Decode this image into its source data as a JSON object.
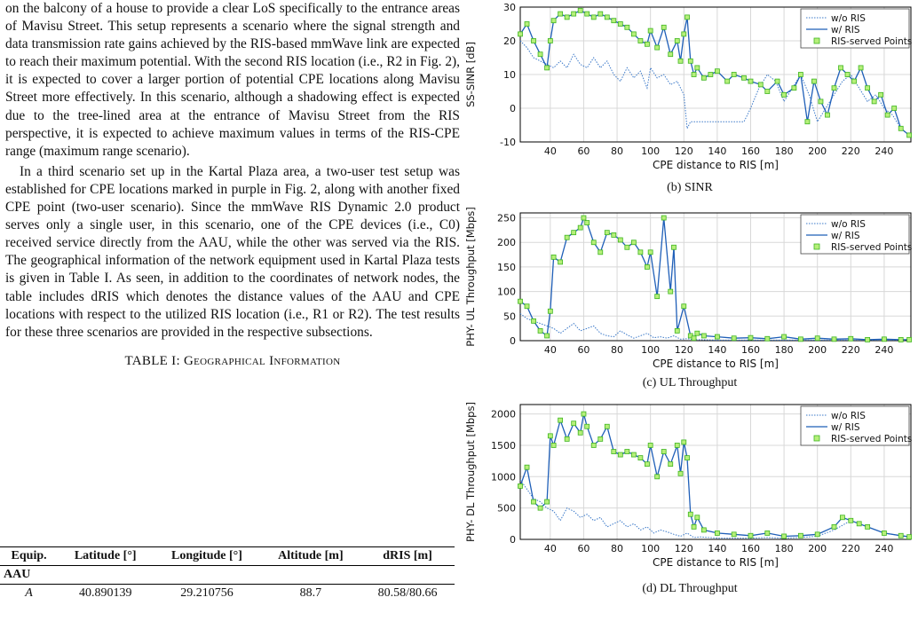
{
  "left": {
    "p1": "on the balcony of a house to provide a clear LoS specifically to the entrance areas of Mavisu Street. This setup represents a scenario where the signal strength and data transmission rate gains achieved by the RIS-based mmWave link are expected to reach their maximum potential. With the second RIS location (i.e., R2 in Fig. 2), it is expected to cover a larger portion of potential CPE locations along Mavisu Street more effectively. In this scenario, although a shadowing effect is expected due to the tree-lined area at the entrance of Mavisu Street from the RIS perspective, it is expected to achieve maximum values in terms of the RIS-CPE range (maximum range scenario).",
    "p2": "In a third scenario set up in the Kartal Plaza area, a two-user test setup was established for CPE locations marked in purple in Fig. 2, along with another fixed CPE point (two-user scenario). Since the mmWave RIS Dynamic 2.0 product serves only a single user, in this scenario, one of the CPE devices (i.e., C0) received service directly from the AAU, while the other was served via the RIS. The geographical information of the network equipment used in Kartal Plaza tests is given in Table I. As seen, in addition to the coordinates of network nodes, the table includes dRIS which denotes the distance values of the AAU and CPE locations with respect to the utilized RIS location (i.e., R1 or R2). The test results for these three scenarios are provided in the respective subsections.",
    "table_title": "TABLE I: Geographical Information",
    "table": {
      "headers": [
        "Equip.",
        "Latitude [°]",
        "Longitude [°]",
        "Altitude [m]",
        "dRIS [m]"
      ],
      "group": "AAU",
      "row": [
        "A",
        "40.890139",
        "29.210756",
        "88.7",
        "80.58/80.66"
      ]
    }
  },
  "figures": [
    {
      "caption": "(b) SINR",
      "legend": [
        "w/o RIS",
        "w/ RIS",
        "RIS-served Points"
      ],
      "chart_data": {
        "type": "line",
        "ylabel": "SS-SINR [dB]",
        "xlabel": "CPE distance to RIS [m]",
        "xlim": [
          22,
          256
        ],
        "ylim": [
          -10,
          30
        ],
        "xticks": [
          40,
          60,
          80,
          100,
          120,
          140,
          160,
          180,
          200,
          220,
          240
        ],
        "yticks": [
          -10,
          0,
          10,
          20,
          30
        ],
        "series": [
          {
            "name": "w/o RIS",
            "x": [
              22,
              26,
              30,
              34,
              38,
              42,
              46,
              50,
              54,
              58,
              62,
              66,
              70,
              74,
              78,
              82,
              86,
              90,
              94,
              98,
              100,
              104,
              108,
              112,
              116,
              120,
              122,
              124,
              130,
              140,
              150,
              156,
              160,
              165,
              170,
              175,
              180,
              185,
              190,
              195,
              200,
              205,
              210,
              215,
              220,
              225,
              230,
              235,
              240,
              245,
              250,
              255
            ],
            "values": [
              20,
              18,
              15,
              14,
              13,
              12,
              14,
              12,
              16,
              13,
              12,
              15,
              12,
              14,
              10,
              8,
              12,
              9,
              11,
              6,
              12,
              9,
              10,
              7,
              8,
              4,
              -6,
              -4,
              -4,
              -4,
              -4,
              -4,
              0,
              6,
              10,
              8,
              2,
              6,
              10,
              4,
              -4,
              0,
              4,
              8,
              10,
              6,
              2,
              4,
              0,
              -2,
              -6,
              -8
            ]
          },
          {
            "name": "w/ RIS",
            "x": [
              22,
              26,
              30,
              34,
              38,
              40,
              42,
              46,
              50,
              54,
              58,
              62,
              66,
              70,
              74,
              78,
              82,
              86,
              90,
              94,
              98,
              100,
              104,
              108,
              112,
              116,
              118,
              120,
              122,
              124,
              126,
              128,
              132,
              136,
              140,
              146,
              150,
              156,
              160,
              166,
              170,
              176,
              180,
              186,
              190,
              194,
              198,
              202,
              206,
              210,
              214,
              218,
              222,
              226,
              230,
              234,
              238,
              242,
              246,
              250,
              255
            ],
            "values": [
              22,
              25,
              20,
              16,
              12,
              20,
              26,
              28,
              27,
              28,
              29,
              28,
              27,
              28,
              27,
              26,
              25,
              24,
              22,
              20,
              19,
              23,
              18,
              24,
              16,
              20,
              14,
              22,
              27,
              14,
              10,
              12,
              9,
              10,
              11,
              8,
              10,
              9,
              8,
              7,
              5,
              8,
              4,
              6,
              10,
              -4,
              8,
              2,
              -2,
              6,
              12,
              10,
              8,
              12,
              6,
              2,
              4,
              -2,
              0,
              -6,
              -8
            ]
          }
        ]
      }
    },
    {
      "caption": "(c) UL Throughput",
      "legend": [
        "w/o RIS",
        "w/ RIS",
        "RIS-served Points"
      ],
      "chart_data": {
        "type": "line",
        "ylabel": "PHY- UL Throughput [Mbps]",
        "xlabel": "CPE distance to RIS [m]",
        "xlim": [
          22,
          256
        ],
        "ylim": [
          0,
          260
        ],
        "xticks": [
          40,
          60,
          80,
          100,
          120,
          140,
          160,
          180,
          200,
          220,
          240
        ],
        "yticks": [
          0,
          50,
          100,
          150,
          200,
          250
        ],
        "series": [
          {
            "name": "w/o RIS",
            "x": [
              22,
              26,
              30,
              34,
              38,
              42,
              46,
              50,
              54,
              58,
              62,
              66,
              70,
              74,
              78,
              82,
              86,
              90,
              94,
              98,
              102,
              106,
              110,
              114,
              118,
              122,
              126,
              130,
              140,
              150,
              160,
              170,
              180,
              190,
              200,
              210,
              220,
              230,
              240,
              250,
              255
            ],
            "values": [
              55,
              45,
              40,
              35,
              30,
              25,
              15,
              25,
              35,
              20,
              25,
              30,
              15,
              10,
              8,
              20,
              12,
              5,
              10,
              15,
              6,
              8,
              5,
              10,
              3,
              4,
              2,
              2,
              1,
              1,
              1,
              1,
              1,
              1,
              1,
              1,
              1,
              1,
              1,
              1,
              1
            ]
          },
          {
            "name": "w/ RIS",
            "x": [
              22,
              26,
              30,
              34,
              38,
              40,
              42,
              46,
              50,
              54,
              58,
              60,
              62,
              66,
              70,
              74,
              78,
              82,
              86,
              90,
              94,
              98,
              100,
              104,
              108,
              112,
              114,
              116,
              120,
              124,
              126,
              128,
              132,
              140,
              150,
              160,
              170,
              180,
              190,
              200,
              210,
              220,
              230,
              240,
              250,
              255
            ],
            "values": [
              80,
              70,
              40,
              20,
              10,
              60,
              170,
              160,
              210,
              220,
              230,
              250,
              240,
              200,
              180,
              220,
              215,
              205,
              190,
              200,
              180,
              150,
              180,
              90,
              250,
              100,
              190,
              20,
              70,
              10,
              5,
              15,
              10,
              8,
              5,
              6,
              4,
              8,
              3,
              5,
              3,
              4,
              2,
              3,
              2,
              2
            ]
          }
        ]
      }
    },
    {
      "caption": "(d) DL Throughput",
      "legend": [
        "w/o RIS",
        "w/ RIS",
        "RIS-served Points"
      ],
      "chart_data": {
        "type": "line",
        "ylabel": "PHY- DL Throughput [Mbps]",
        "xlabel": "CPE distance to RIS [m]",
        "xlim": [
          22,
          256
        ],
        "ylim": [
          0,
          2150
        ],
        "xticks": [
          40,
          60,
          80,
          100,
          120,
          140,
          160,
          180,
          200,
          220,
          240
        ],
        "yticks": [
          0,
          500,
          1000,
          1500,
          2000
        ],
        "series": [
          {
            "name": "w/o RIS",
            "x": [
              22,
              26,
              30,
              34,
              38,
              42,
              46,
              50,
              54,
              58,
              62,
              66,
              70,
              74,
              78,
              82,
              86,
              90,
              94,
              98,
              102,
              106,
              110,
              114,
              118,
              122,
              126,
              130,
              140,
              150,
              160,
              170,
              180,
              190,
              200,
              210,
              220,
              230,
              240,
              250,
              255
            ],
            "values": [
              950,
              800,
              650,
              600,
              500,
              450,
              300,
              500,
              450,
              350,
              400,
              300,
              350,
              200,
              250,
              300,
              200,
              250,
              150,
              200,
              100,
              150,
              120,
              80,
              50,
              100,
              30,
              40,
              20,
              20,
              20,
              30,
              20,
              30,
              50,
              150,
              300,
              200,
              100,
              60,
              50
            ]
          },
          {
            "name": "w/ RIS",
            "x": [
              22,
              26,
              30,
              34,
              38,
              40,
              42,
              46,
              50,
              54,
              58,
              60,
              62,
              66,
              70,
              74,
              78,
              82,
              86,
              90,
              94,
              98,
              100,
              104,
              108,
              112,
              116,
              118,
              120,
              122,
              124,
              126,
              128,
              132,
              140,
              150,
              160,
              170,
              180,
              190,
              200,
              210,
              215,
              220,
              225,
              230,
              240,
              250,
              255
            ],
            "values": [
              850,
              1150,
              600,
              500,
              600,
              1650,
              1500,
              1900,
              1600,
              1850,
              1700,
              2000,
              1800,
              1500,
              1600,
              1800,
              1400,
              1350,
              1400,
              1350,
              1300,
              1200,
              1500,
              1000,
              1400,
              1200,
              1500,
              1050,
              1550,
              1300,
              400,
              200,
              350,
              150,
              100,
              80,
              60,
              100,
              50,
              60,
              80,
              200,
              350,
              300,
              250,
              200,
              100,
              60,
              40
            ]
          }
        ]
      }
    }
  ]
}
